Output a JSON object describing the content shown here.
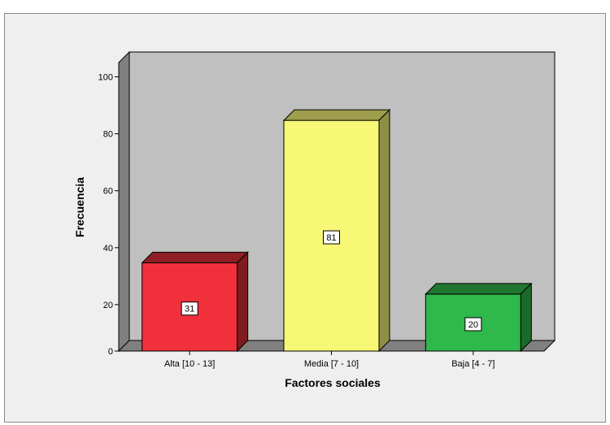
{
  "chart_data": {
    "type": "bar",
    "title": "",
    "xlabel": "Factores sociales",
    "ylabel": "Frecuencia",
    "categories": [
      "Alta [10 - 13]",
      "Media [7 - 10]",
      "Baja [4 - 7]"
    ],
    "values": [
      31,
      81,
      20
    ],
    "data_labels": [
      "31",
      "81",
      "20"
    ],
    "ylim": [
      0,
      105
    ],
    "yticks": [
      0,
      20,
      40,
      60,
      80,
      100
    ],
    "grid": false,
    "legend": "none",
    "style": "3d",
    "colors": {
      "bars": [
        "#f0313c",
        "#f8f877",
        "#2fb84c"
      ],
      "bar_tops": [
        "#8d1f24",
        "#9e9e4c",
        "#1f7630"
      ],
      "bar_sides": [
        "#7e1c20",
        "#8e8e45",
        "#1c6a2b"
      ],
      "wall": "#c0c0c0",
      "floor": "#808080",
      "side_wall": "#7f7f7f",
      "background": "#efefef"
    }
  }
}
